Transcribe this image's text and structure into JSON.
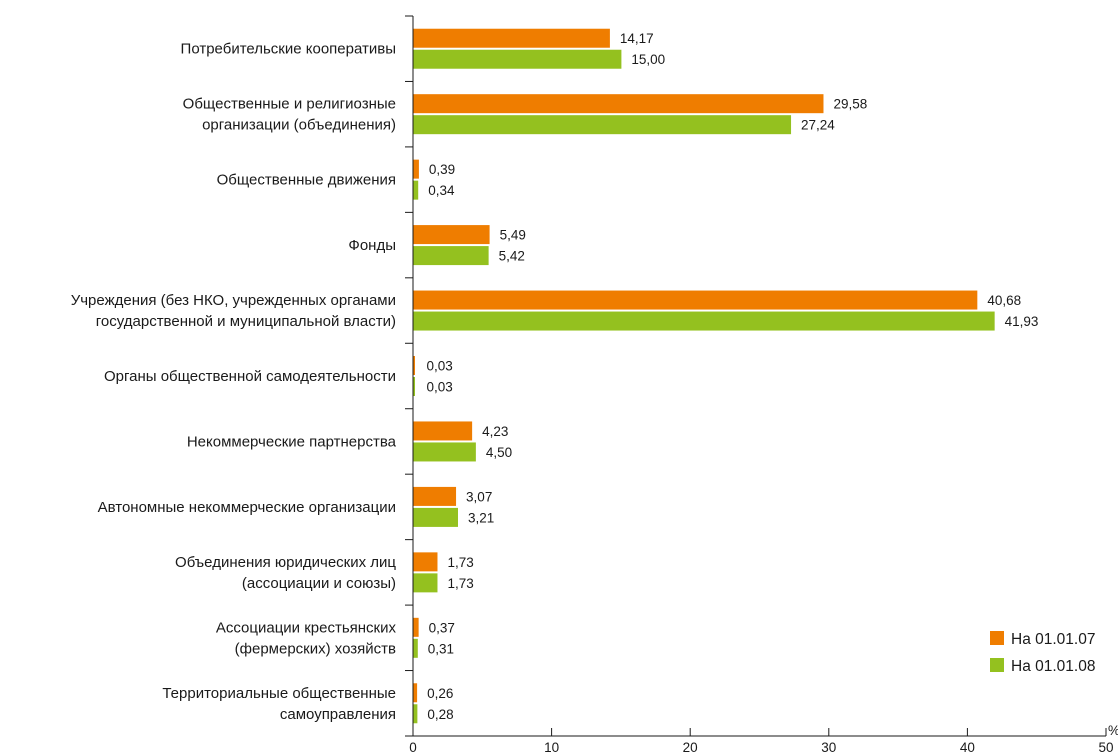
{
  "chart_data": {
    "type": "bar",
    "orientation": "horizontal",
    "categories": [
      [
        "Потребительские кооперативы"
      ],
      [
        "Общественные и религиозные",
        "организации (объединения)"
      ],
      [
        "Общественные движения"
      ],
      [
        "Фонды"
      ],
      [
        "Учреждения (без НКО, учрежденных органами",
        "государственной и муниципальной власти)"
      ],
      [
        "Органы общественной самодеятельности"
      ],
      [
        "Некоммерческие партнерства"
      ],
      [
        "Автономные некоммерческие организации"
      ],
      [
        "Объединения юридических лиц",
        "(ассоциации и союзы)"
      ],
      [
        "Ассоциации крестьянских",
        "(фермерских) хозяйств"
      ],
      [
        "Территориальные общественные",
        "самоуправления"
      ]
    ],
    "series": [
      {
        "name": "На 01.01.07",
        "color": "#ef7d00",
        "values": [
          14.17,
          29.58,
          0.39,
          5.49,
          40.68,
          0.03,
          4.23,
          3.07,
          1.73,
          0.37,
          0.26
        ],
        "labels": [
          "14,17",
          "29,58",
          "0,39",
          "5,49",
          "40,68",
          "0,03",
          "4,23",
          "3,07",
          "1,73",
          "0,37",
          "0,26"
        ]
      },
      {
        "name": "На 01.01.08",
        "color": "#94c11f",
        "values": [
          15.0,
          27.24,
          0.34,
          5.42,
          41.93,
          0.03,
          4.5,
          3.21,
          1.73,
          0.31,
          0.28
        ],
        "labels": [
          "15,00",
          "27,24",
          "0,34",
          "5,42",
          "41,93",
          "0,03",
          "4,50",
          "3,21",
          "1,73",
          "0,31",
          "0,28"
        ]
      }
    ],
    "x_ticks": [
      0,
      10,
      20,
      30,
      40,
      50
    ],
    "x_tick_labels": [
      "0",
      "10",
      "20",
      "30",
      "40",
      "50"
    ],
    "xlim": [
      0,
      50
    ],
    "xunit": "%",
    "grid": false,
    "legend_position": "bottom-right"
  }
}
